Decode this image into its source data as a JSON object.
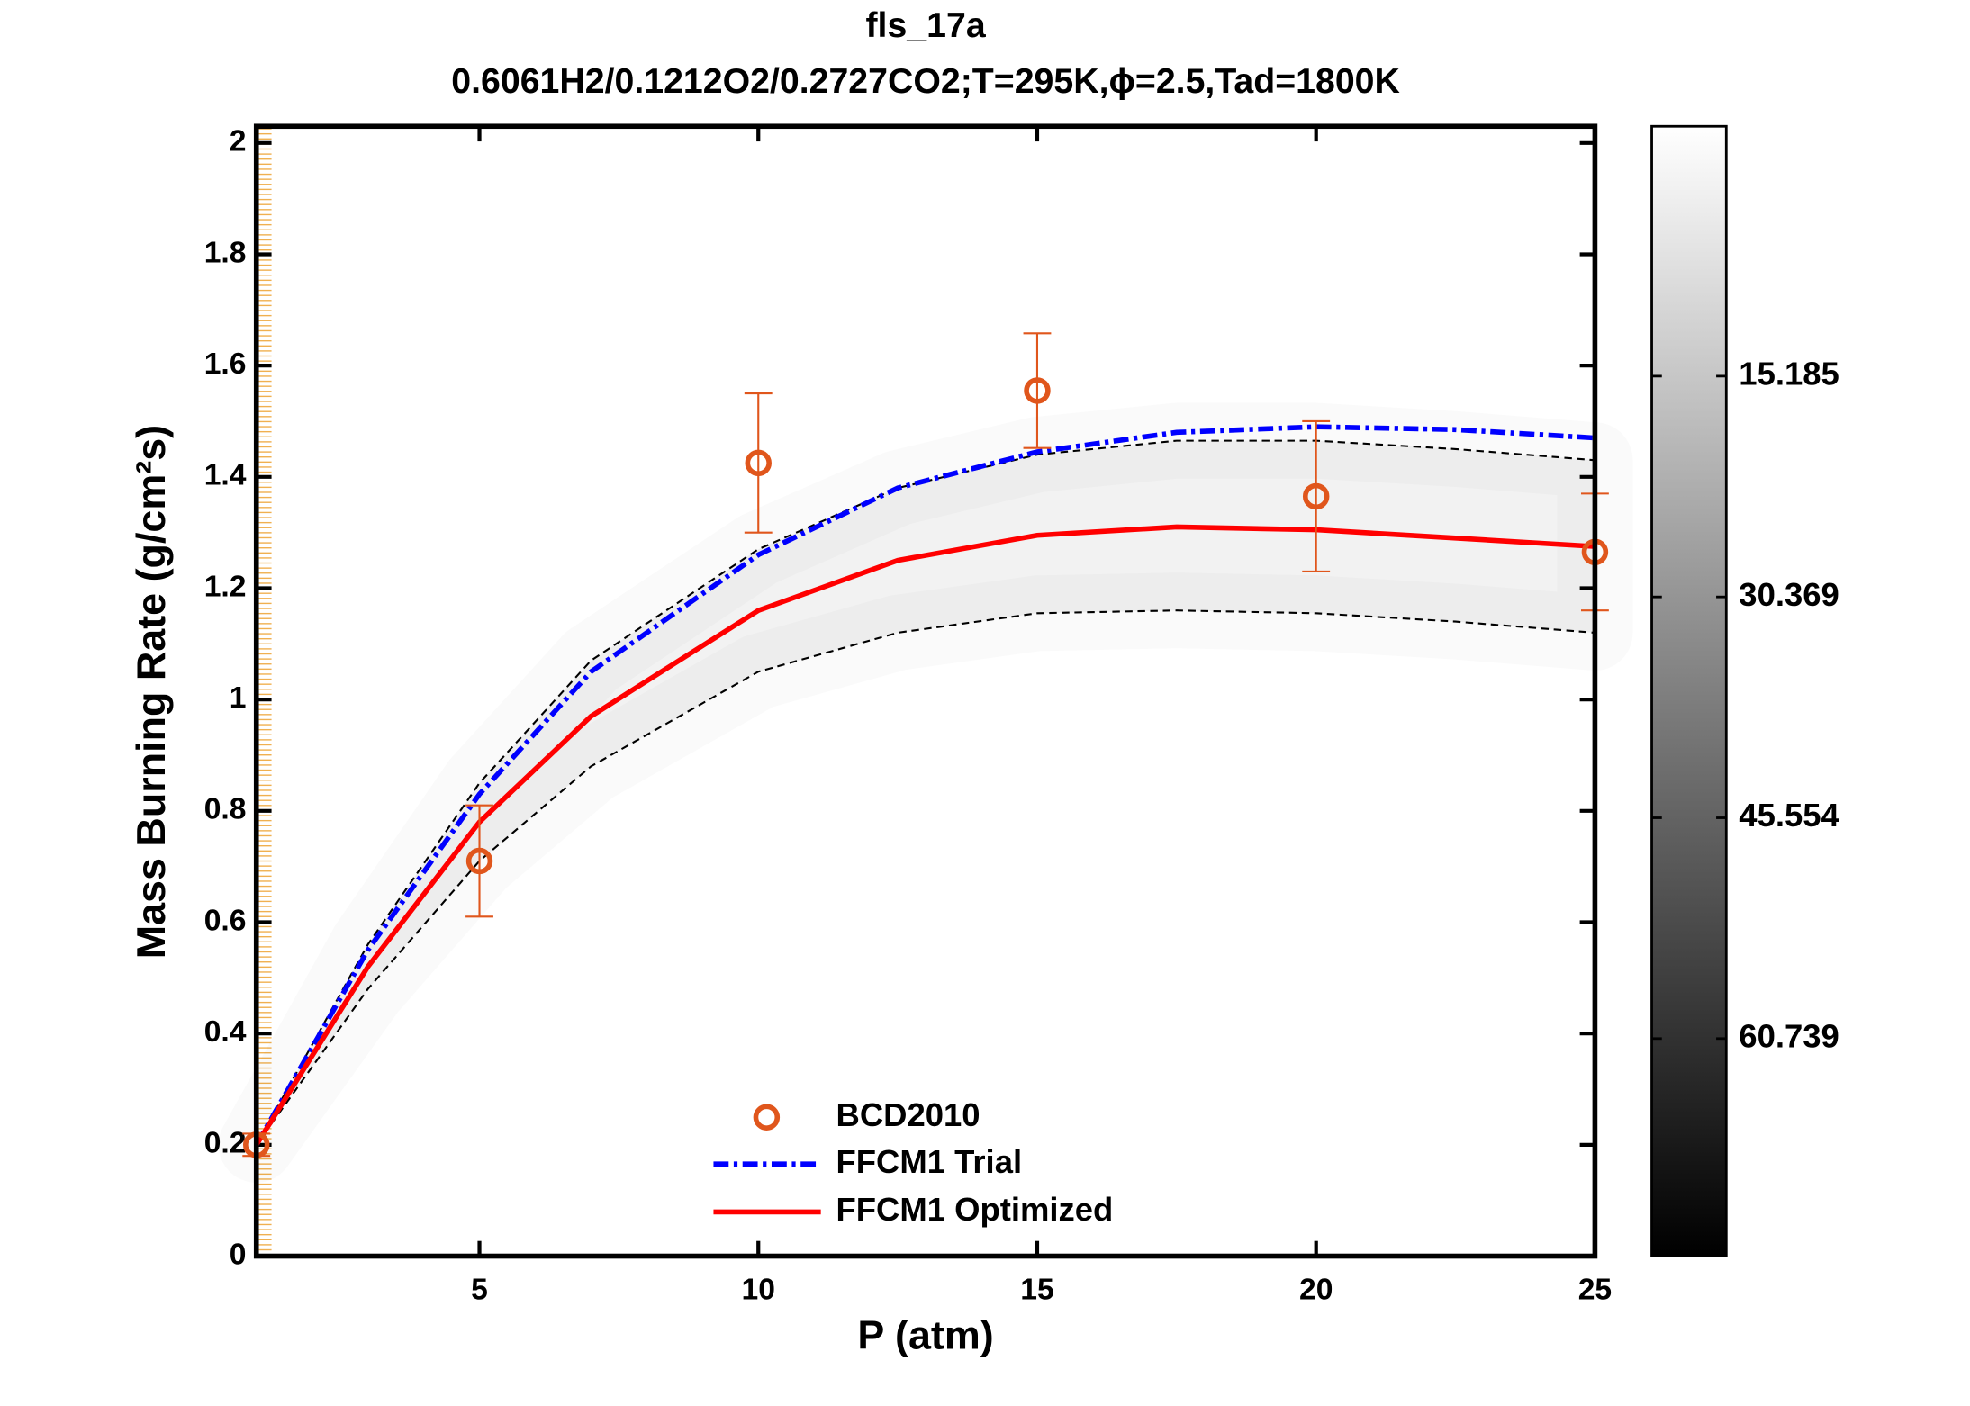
{
  "chart_data": {
    "type": "line",
    "title": "fls_17a",
    "subtitle": "0.6061H2/0.1212O2/0.2727CO2;T=295K,ϕ=2.5,Tad=1800K",
    "x_label": "P (atm)",
    "y_label": "Mass Burning Rate (g/cm²s)",
    "xlim": [
      1,
      25
    ],
    "xticks": [
      5,
      10,
      15,
      20,
      25
    ],
    "ylim": [
      0,
      2.03
    ],
    "yticks": [
      0,
      0.2,
      0.4,
      0.6,
      0.8,
      1,
      1.2,
      1.4,
      1.6,
      1.8,
      2
    ],
    "points": {
      "name": "BCD2010",
      "color": "#e0561c",
      "x": [
        1,
        5,
        10,
        15,
        20,
        25
      ],
      "values": [
        0.2,
        0.71,
        1.425,
        1.555,
        1.365,
        1.265
      ],
      "errors": [
        0.02,
        0.1,
        0.125,
        0.103,
        0.135,
        0.105
      ]
    },
    "series": [
      {
        "name": "FFCM1 Trial",
        "color": "#0000ff",
        "style": "dashdot",
        "x": [
          1,
          3,
          5,
          7,
          10,
          12.5,
          15,
          17.5,
          20,
          22.5,
          25
        ],
        "values": [
          0.2,
          0.55,
          0.83,
          1.05,
          1.26,
          1.38,
          1.445,
          1.48,
          1.49,
          1.485,
          1.47
        ]
      },
      {
        "name": "FFCM1 Optimized",
        "color": "#ff0000",
        "style": "solid",
        "x": [
          1,
          3,
          5,
          7,
          10,
          12.5,
          15,
          17.5,
          20,
          22.5,
          25
        ],
        "values": [
          0.2,
          0.52,
          0.78,
          0.97,
          1.16,
          1.25,
          1.295,
          1.31,
          1.305,
          1.29,
          1.275
        ]
      }
    ],
    "uncertainty_band": {
      "color": "#000000",
      "x": [
        1,
        3,
        5,
        7,
        10,
        12.5,
        15,
        17.5,
        20,
        22.5,
        25
      ],
      "upper": [
        0.2,
        0.56,
        0.85,
        1.07,
        1.27,
        1.38,
        1.44,
        1.465,
        1.465,
        1.45,
        1.43
      ],
      "lower": [
        0.2,
        0.48,
        0.71,
        0.88,
        1.05,
        1.12,
        1.155,
        1.16,
        1.155,
        1.14,
        1.12
      ]
    },
    "colorbar": {
      "clim": [
        -2.0,
        75.7
      ],
      "ticks": [
        15.185,
        30.369,
        45.554,
        60.739
      ]
    }
  }
}
